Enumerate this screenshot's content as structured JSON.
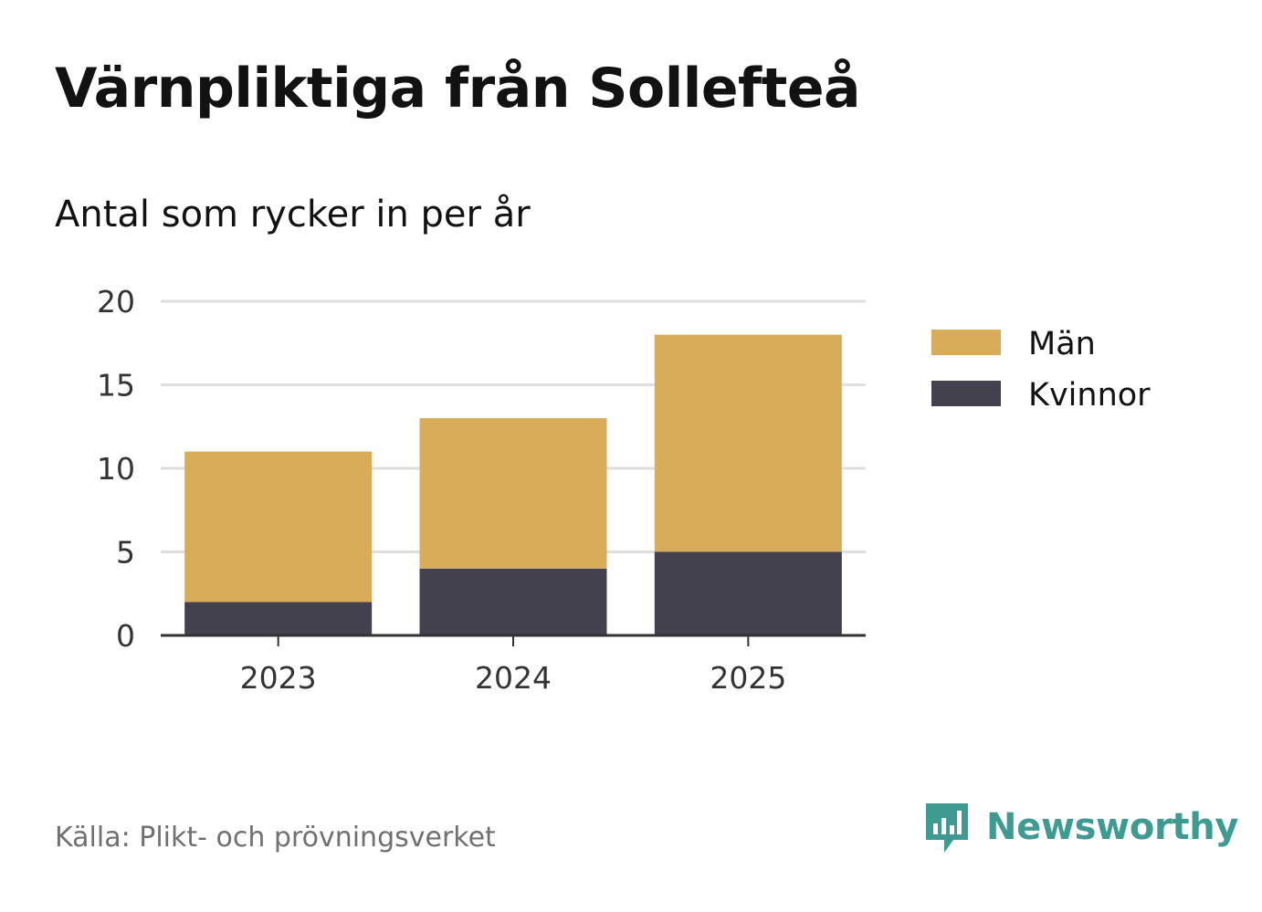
{
  "title": "Värnpliktiga från Sollefteå",
  "subtitle": "Antal som rycker in per år",
  "source": "Källa: Plikt- och prövningsverket",
  "brand": {
    "name": "Newsworthy",
    "icon": "newsworthy-logo-icon",
    "color": "#3e9b92"
  },
  "chart_data": {
    "type": "bar",
    "stacked": true,
    "categories": [
      "2023",
      "2024",
      "2025"
    ],
    "series": [
      {
        "name": "Kvinnor",
        "values": [
          2,
          4,
          5
        ],
        "color": "#44414f"
      },
      {
        "name": "Män",
        "values": [
          9,
          9,
          13
        ],
        "color": "#d9ac5a"
      }
    ],
    "legend_order": [
      "Män",
      "Kvinnor"
    ],
    "ylim": [
      0,
      20
    ],
    "yticks": [
      0,
      5,
      10,
      15,
      20
    ],
    "grid": true,
    "legend_position": "right"
  }
}
